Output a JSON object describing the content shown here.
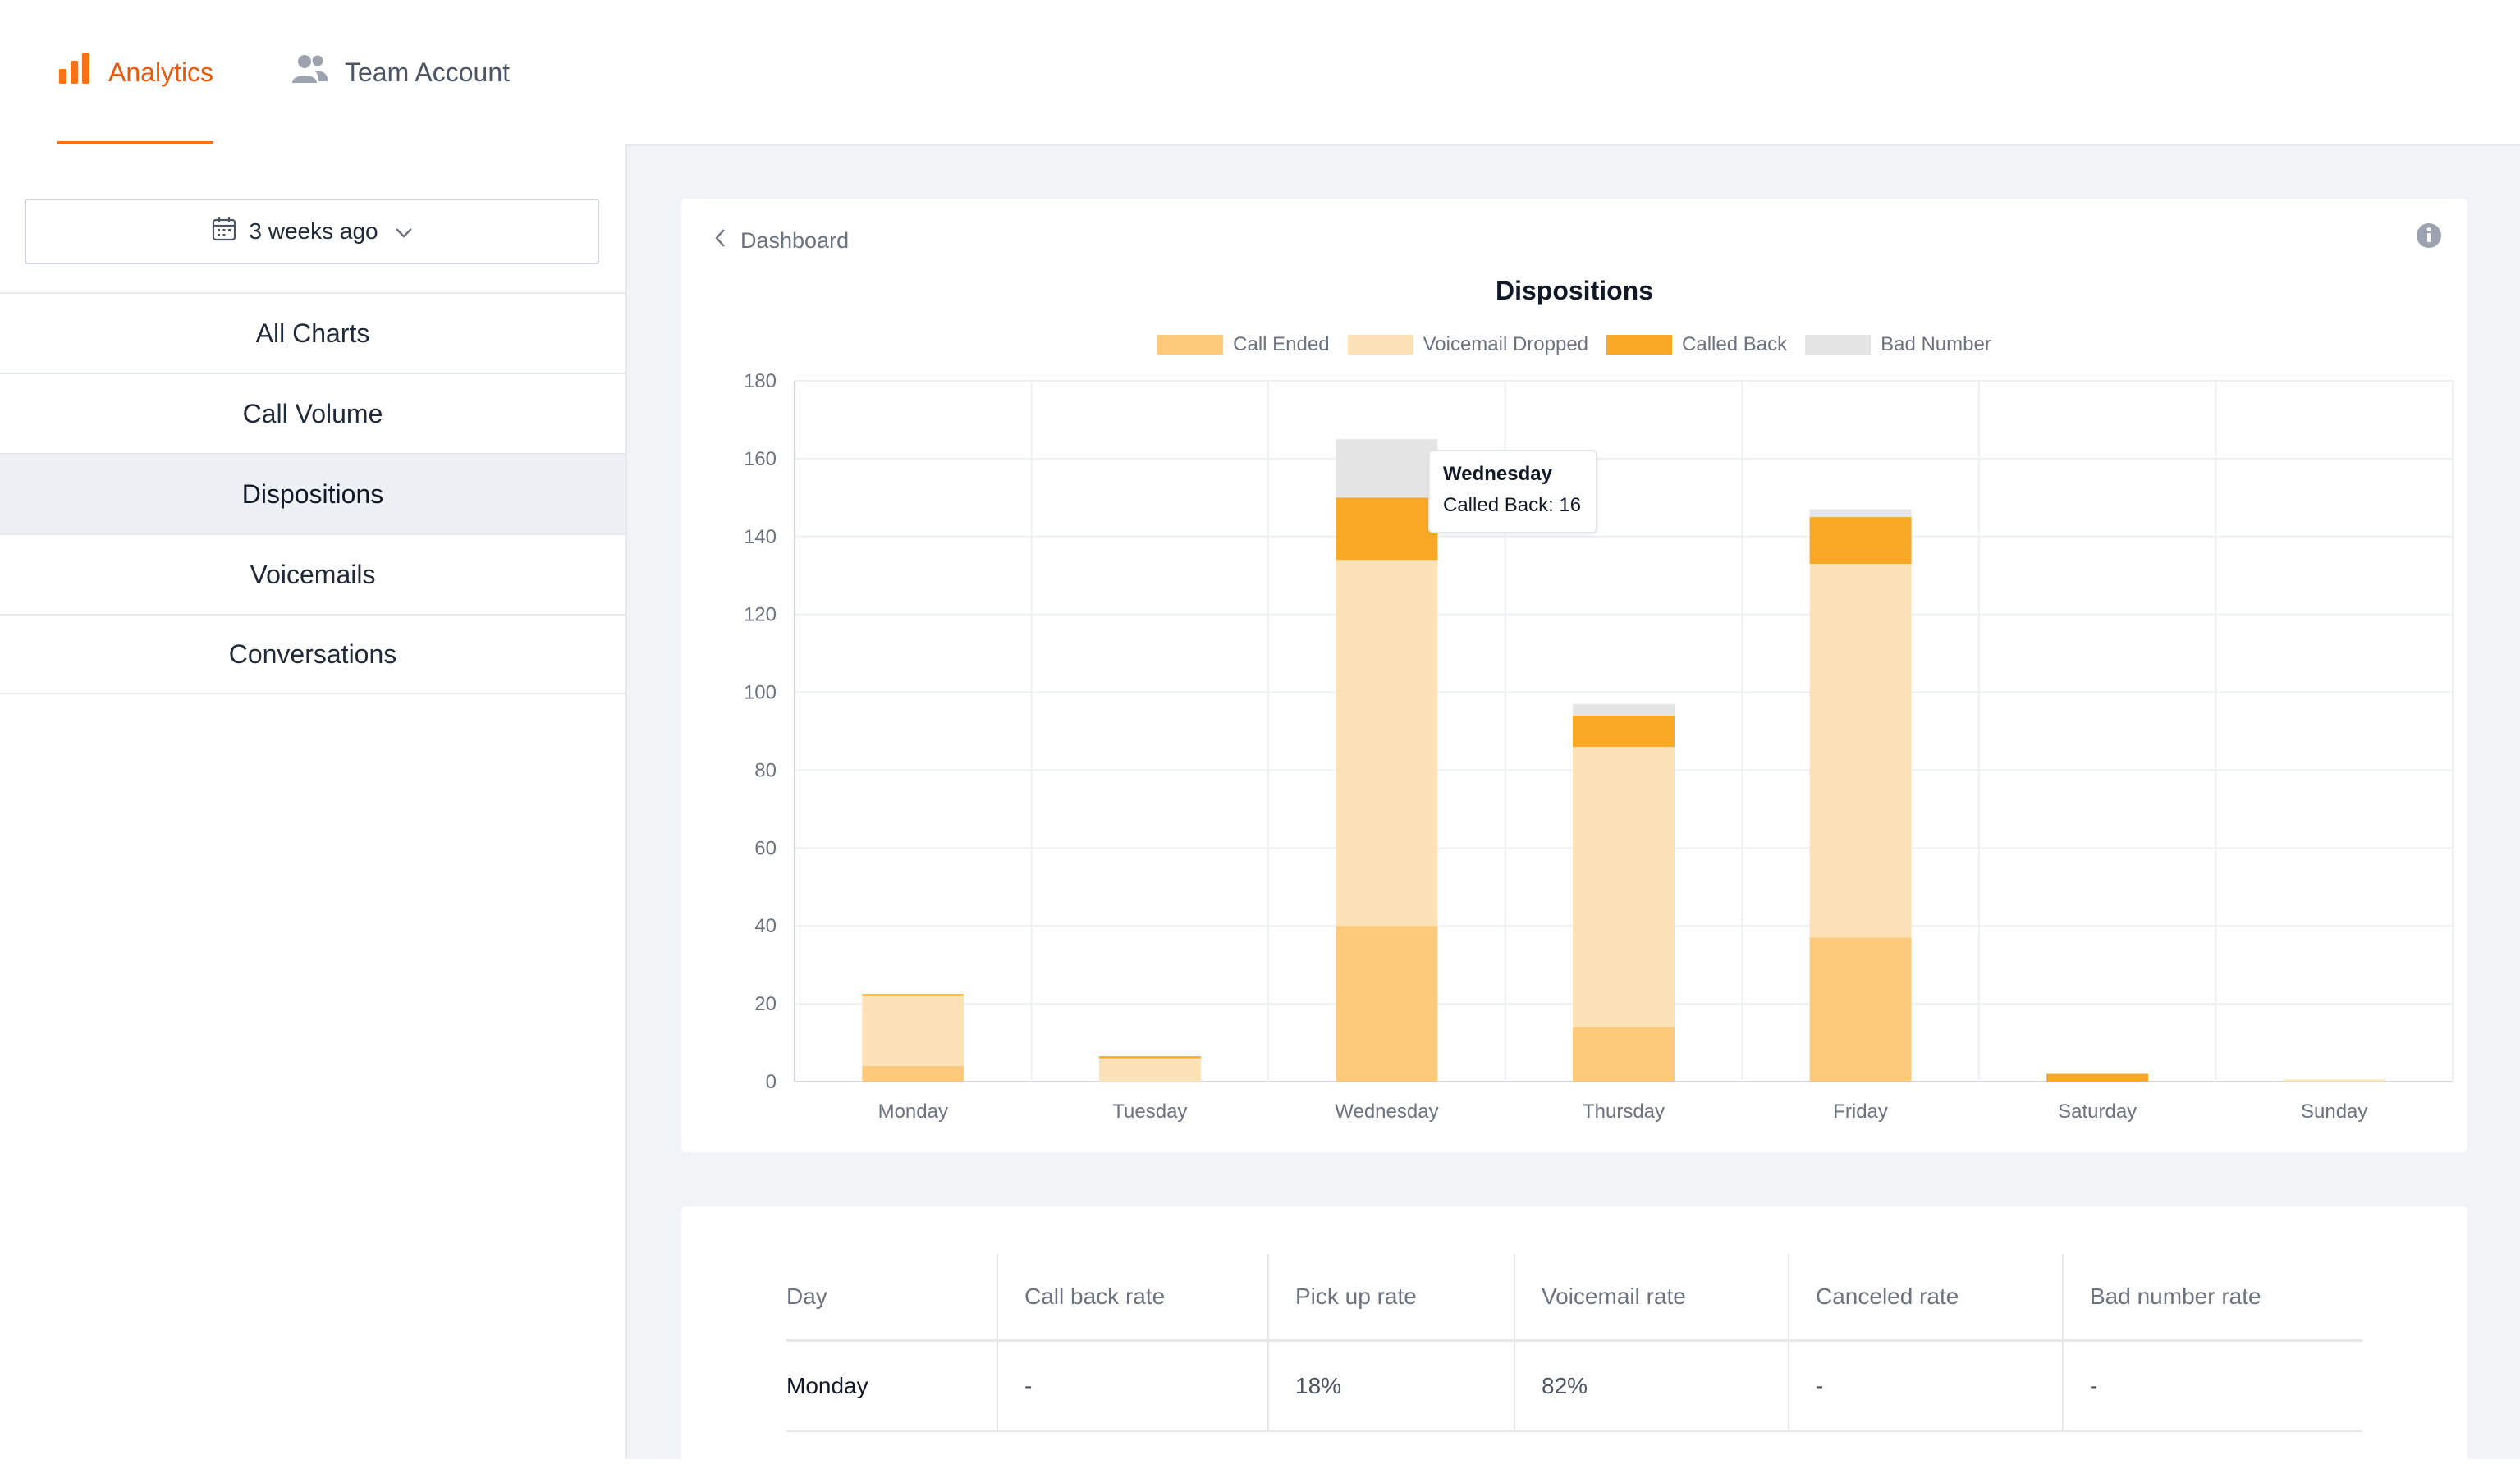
{
  "nav": {
    "tabs": [
      {
        "label": "Analytics",
        "icon": "bar-chart-icon",
        "active": true
      },
      {
        "label": "Team Account",
        "icon": "users-icon",
        "active": false
      }
    ],
    "accent_color": "#f97316"
  },
  "sidebar": {
    "date_range": {
      "value": "3 weeks ago",
      "icon": "calendar-icon"
    },
    "items": [
      {
        "label": "All Charts"
      },
      {
        "label": "Call Volume"
      },
      {
        "label": "Dispositions",
        "selected": true
      },
      {
        "label": "Voicemails"
      },
      {
        "label": "Conversations"
      }
    ]
  },
  "chart_card": {
    "back_label": "Dashboard",
    "info_icon": "info-icon",
    "tooltip": {
      "title": "Wednesday",
      "text": "Called Back: 16"
    }
  },
  "chart_data": {
    "type": "bar",
    "stacked": true,
    "title": "Dispositions",
    "xlabel": "",
    "ylabel": "",
    "categories": [
      "Monday",
      "Tuesday",
      "Wednesday",
      "Thursday",
      "Friday",
      "Saturday",
      "Sunday"
    ],
    "ylim": [
      0,
      180
    ],
    "yticks": [
      0,
      20,
      40,
      60,
      80,
      100,
      120,
      140,
      160,
      180
    ],
    "legend_position": "top-center",
    "grid": true,
    "series": [
      {
        "name": "Call Ended",
        "color": "#fdc97a",
        "values": [
          4,
          0,
          40,
          14,
          37,
          0,
          0
        ]
      },
      {
        "name": "Voicemail Dropped",
        "color": "#fde2b8",
        "values": [
          18,
          6,
          94,
          72,
          96,
          0,
          0.5
        ]
      },
      {
        "name": "Called Back",
        "color": "#f9a825",
        "values": [
          0.5,
          0.5,
          16,
          8,
          12,
          2,
          0
        ]
      },
      {
        "name": "Bad Number",
        "color": "#e5e5e5",
        "values": [
          0,
          0,
          15,
          3,
          2,
          0,
          0
        ]
      }
    ]
  },
  "table": {
    "headers": [
      "Day",
      "Call back rate",
      "Pick up rate",
      "Voicemail rate",
      "Canceled rate",
      "Bad number rate"
    ],
    "rows": [
      [
        "Monday",
        "-",
        "18%",
        "82%",
        "-",
        "-"
      ]
    ]
  }
}
